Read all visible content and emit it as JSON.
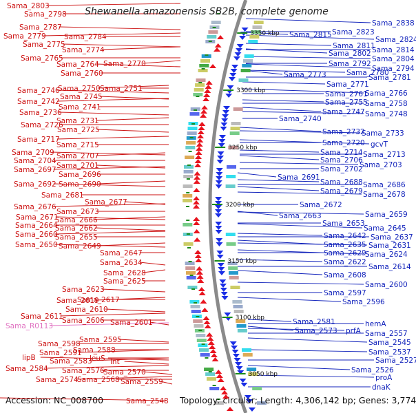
{
  "title": "Shewanella amazonensis SB2B, complete genome",
  "accession": "Accession: NC_008700",
  "topology": "Topology: circular; Length: 4,306,142 bp; Genes: 3,774",
  "colors": {
    "forward_arrow": "#e8141e",
    "reverse_arrow": "#1a2ee6",
    "left_label": "#cc1111",
    "right_label": "#1122bb",
    "rna_label": "#e070c0",
    "backbone": "#8a8a8a",
    "tick_mark": "#1a8a1a"
  },
  "kbp_ticks": [
    "3350 kbp",
    "3300 kbp",
    "3250 kbp",
    "3200 kbp",
    "3150 kbp",
    "3100 kbp",
    "3050 kbp"
  ],
  "left_labels": [
    "Sama_2803",
    "Sama_2798",
    "Sama_2787",
    "Sama_2779",
    "Sama_2784",
    "Sama_2775",
    "Sama_2774",
    "Sama_2765",
    "Sama_2764",
    "Sama_2770",
    "Sama_2760",
    "Sama_2746",
    "Sama_2750",
    "Sama_2751",
    "Sama_2745",
    "Sama_2742",
    "Sama_2741",
    "Sama_2736",
    "Sama_2731",
    "Sama_2726",
    "Sama_2725",
    "Sama_2717",
    "Sama_2715",
    "Sama_2709",
    "Sama_2707",
    "Sama_2704",
    "Sama_2701",
    "Sama_2697",
    "Sama_2696",
    "Sama_2692",
    "Sama_2690",
    "Sama_2681",
    "Sama_2677",
    "Sama_2676",
    "Sama_2673",
    "Sama_2671",
    "Sama_2666",
    "Sama_2664",
    "Sama_2662",
    "Sama_2660",
    "Sama_2655",
    "Sama_2650",
    "Sama_2649",
    "Sama_2647",
    "Sama_2634",
    "Sama_2628",
    "Sama_2625",
    "Sama_2623",
    "Sama_2619",
    "Sama_2617",
    "Sama_2610",
    "Sama_2611",
    "Sama_2606",
    "Sama_2601",
    "Sama_R0113",
    "Sama_2598",
    "Sama_2595",
    "Sama_2591",
    "Sama_2588",
    "lipB",
    "Sama_2583",
    "leuS",
    "lnt",
    "Sama_2584",
    "Sama_2576",
    "Sama_2570",
    "Sama_2574",
    "Sama_2568",
    "Sama_2559",
    "Sama_2548"
  ],
  "right_labels": [
    "Sama_2838",
    "Sama_2815",
    "Sama_2823",
    "Sama_2824",
    "Sama_2811",
    "Sama_2814",
    "Sama_2802",
    "Sama_2804",
    "Sama_2792",
    "Sama_2794",
    "Sama_2780",
    "Sama_2781",
    "Sama_2773",
    "Sama_2771",
    "Sama_2761",
    "Sama_2766",
    "Sama_2755",
    "Sama_2758",
    "Sama_2747",
    "Sama_2748",
    "Sama_2740",
    "Sama_2732",
    "Sama_2733",
    "Sama_2720",
    "gcvT",
    "Sama_2714",
    "Sama_2713",
    "Sama_2706",
    "Sama_2703",
    "Sama_2702",
    "Sama_2691",
    "Sama_2688",
    "Sama_2686",
    "Sama_2679",
    "Sama_2678",
    "Sama_2672",
    "Sama_2663",
    "Sama_2659",
    "Sama_2653",
    "Sama_2645",
    "Sama_2642",
    "Sama_2637",
    "Sama_2635",
    "Sama_2631",
    "Sama_2629",
    "Sama_2624",
    "Sama_2622",
    "Sama_2614",
    "Sama_2608",
    "Sama_2600",
    "Sama_2597",
    "Sama_2596",
    "Sama_2581",
    "hemA",
    "Sama_2573",
    "prfA",
    "Sama_2557",
    "Sama_2545",
    "Sama_2537",
    "Sama_2527",
    "Sama_2526",
    "proA",
    "dnaK"
  ]
}
